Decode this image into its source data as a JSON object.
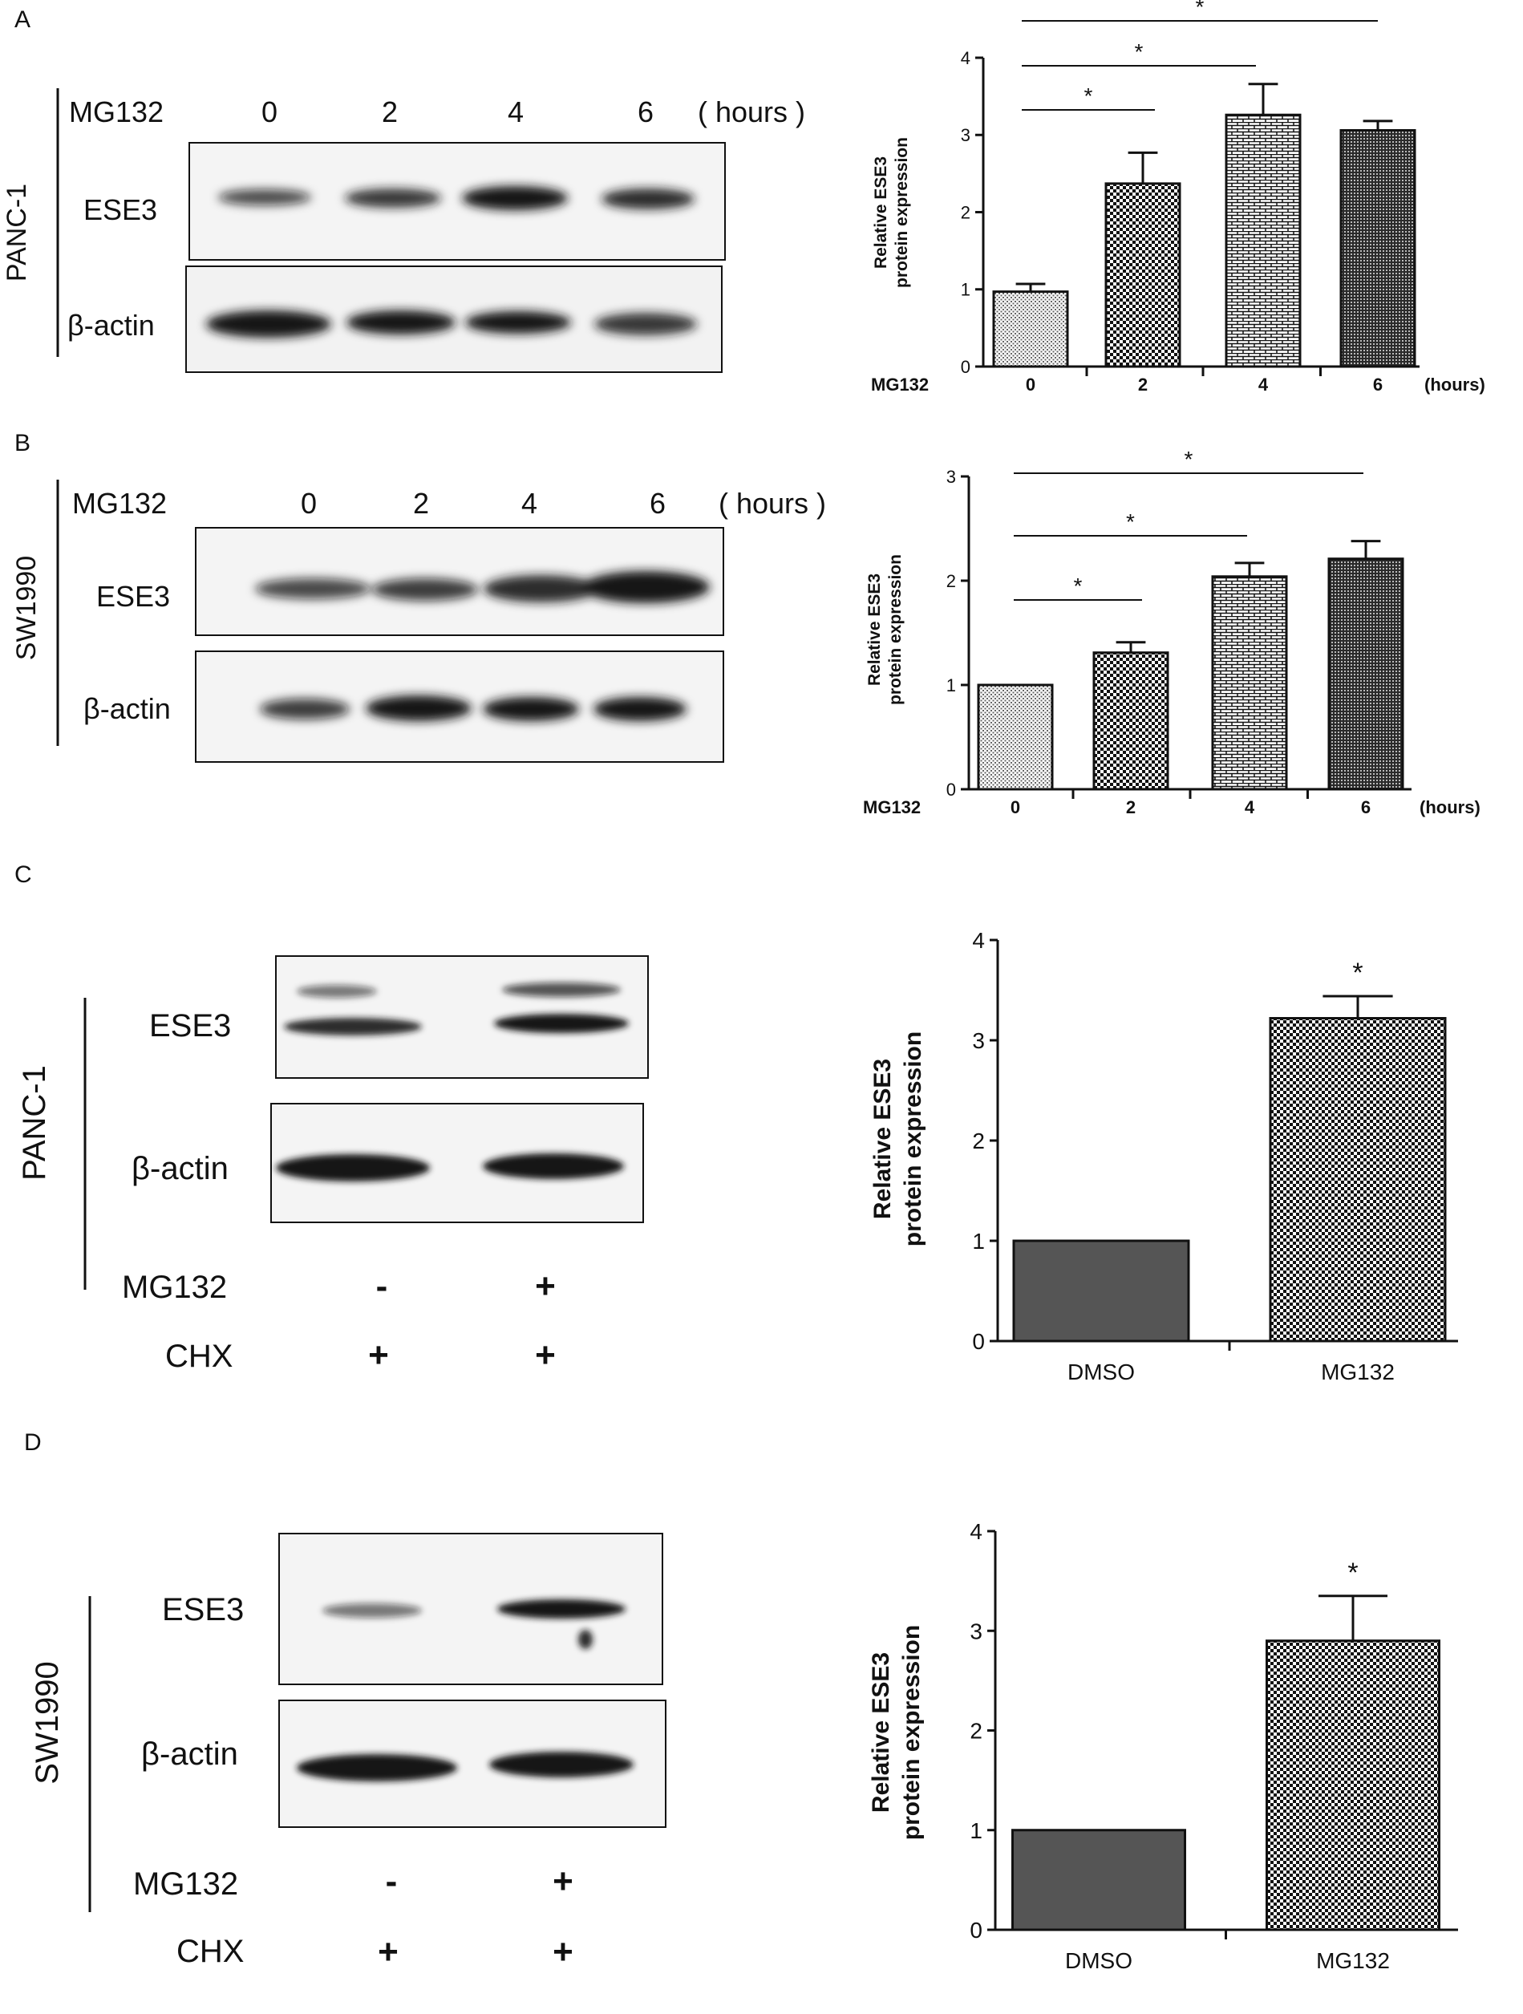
{
  "colors": {
    "ink": "#111111",
    "bar_solid": "#555555",
    "blot_bg": "#f4f4f4",
    "band": "#141414"
  },
  "panels": [
    {
      "letter": "A",
      "cell_line": "PANC-1",
      "row1_label": "MG132",
      "lanes": [
        "0",
        "2",
        "4",
        "6"
      ],
      "unit": "( hours )",
      "blot_labels": [
        "ESE3",
        "β-actin"
      ]
    },
    {
      "letter": "B",
      "cell_line": "SW1990",
      "row1_label": "MG132",
      "lanes": [
        "0",
        "2",
        "4",
        "6"
      ],
      "unit": "( hours )",
      "blot_labels": [
        "ESE3",
        "β-actin"
      ]
    },
    {
      "letter": "C",
      "cell_line": "PANC-1",
      "blot_labels": [
        "ESE3",
        "β-actin"
      ],
      "treatments": [
        {
          "label": "MG132",
          "values": [
            "-",
            "+"
          ]
        },
        {
          "label": "CHX",
          "values": [
            "+",
            "+"
          ]
        }
      ]
    },
    {
      "letter": "D",
      "cell_line": "SW1990",
      "blot_labels": [
        "ESE3",
        "β-actin"
      ],
      "treatments": [
        {
          "label": "MG132",
          "values": [
            "-",
            "+"
          ]
        },
        {
          "label": "CHX",
          "values": [
            "+",
            "+"
          ]
        }
      ]
    }
  ],
  "chart_data": [
    {
      "type": "bar",
      "xprefix": "MG132",
      "categories": [
        "0",
        "2",
        "4",
        "6"
      ],
      "xunit": "(hours)",
      "values": [
        0.97,
        2.37,
        3.26,
        3.06
      ],
      "errors": [
        0.1,
        0.4,
        0.4,
        0.12
      ],
      "ylabel": [
        "Relative ESE3",
        "protein expression"
      ],
      "ylim": [
        0,
        4
      ],
      "yticks": [
        0,
        1,
        2,
        3,
        4
      ],
      "significance": [
        {
          "from": 0,
          "to": 1,
          "label": "*"
        },
        {
          "from": 0,
          "to": 2,
          "label": "*"
        },
        {
          "from": 0,
          "to": 3,
          "label": "*"
        }
      ]
    },
    {
      "type": "bar",
      "xprefix": "MG132",
      "categories": [
        "0",
        "2",
        "4",
        "6"
      ],
      "xunit": "(hours)",
      "values": [
        1.0,
        1.31,
        2.04,
        2.21
      ],
      "errors": [
        0,
        0.1,
        0.13,
        0.17
      ],
      "ylabel": [
        "Relative ESE3",
        "protein expression"
      ],
      "ylim": [
        0,
        3
      ],
      "yticks": [
        0,
        1,
        2,
        3
      ],
      "significance": [
        {
          "from": 0,
          "to": 1,
          "label": "*"
        },
        {
          "from": 0,
          "to": 2,
          "label": "*"
        },
        {
          "from": 0,
          "to": 3,
          "label": "*"
        }
      ]
    },
    {
      "type": "bar",
      "categories": [
        "DMSO",
        "MG132"
      ],
      "values": [
        1.0,
        3.22
      ],
      "errors": [
        0,
        0.22
      ],
      "ylabel": [
        "Relative ESE3",
        "protein expression"
      ],
      "ylim": [
        0,
        4
      ],
      "yticks": [
        0,
        1,
        2,
        3,
        4
      ],
      "star_labels": [
        "",
        "*"
      ]
    },
    {
      "type": "bar",
      "categories": [
        "DMSO",
        "MG132"
      ],
      "values": [
        1.0,
        2.9
      ],
      "errors": [
        0,
        0.45
      ],
      "ylabel": [
        "Relative ESE3",
        "protein expression"
      ],
      "ylim": [
        0,
        4
      ],
      "yticks": [
        0,
        1,
        2,
        3,
        4
      ],
      "star_labels": [
        "",
        "*"
      ]
    }
  ]
}
